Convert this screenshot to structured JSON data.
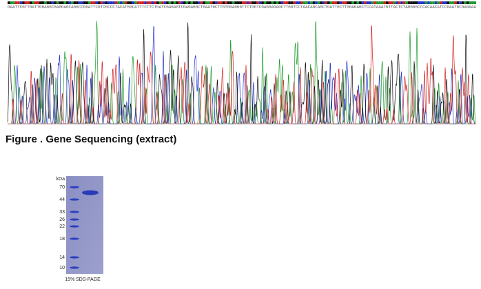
{
  "sequence": {
    "bases": "GAATTCGTTGATTGGAGGCGAGGAGCAGGCCGGATTCGTCGCCCTACATGGCATTTCTTCTGATCGAGAGTCGAGAGGCTGAATGCTTGTGGAGGGTTCTGGTCGAGGAGAGCTTGGTCCTAACAGCAGCTGATTGCTTGGAGAGCTCCATAAATGTTACTCTAGGGGCCCACAACATCCGAATGCGAGAAA"
  },
  "figure": {
    "caption": "Figure . Gene Sequencing (extract)"
  },
  "gel": {
    "unit": "kDa",
    "markers": [
      "70",
      "44",
      "33",
      "26",
      "22",
      "18",
      "14",
      "10"
    ],
    "caption": "15% SDS-PAGE"
  }
}
